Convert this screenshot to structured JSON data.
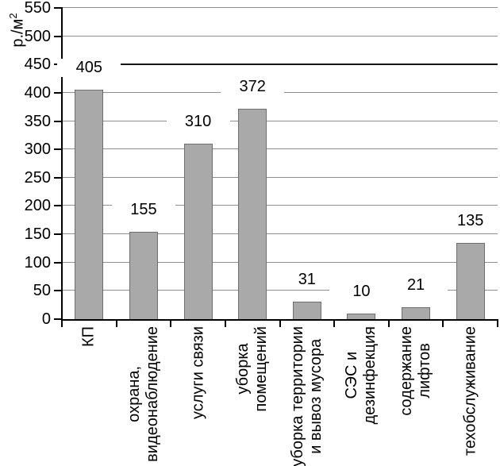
{
  "chart_data": {
    "type": "bar",
    "title": "",
    "ylabel": "р./м2",
    "ylabel_base": "р./м",
    "ylabel_sup": "2",
    "categories": [
      [
        "КП"
      ],
      [
        "охрана,",
        "видеонаблюдение"
      ],
      [
        "услуги связи"
      ],
      [
        "уборка",
        "помещений"
      ],
      [
        "уборка территории",
        "и вывоз мусора"
      ],
      [
        "СЭС и",
        "дезинфекция"
      ],
      [
        "содержание",
        "лифтов"
      ],
      [
        "техобслуживание"
      ]
    ],
    "values": [
      405,
      155,
      310,
      372,
      31,
      10,
      21,
      135
    ],
    "value_labels": [
      "405",
      "155",
      "310",
      "372",
      "31",
      "10",
      "21",
      "135"
    ],
    "ylim": [
      0,
      550
    ],
    "ytick_step": 50,
    "grid": true,
    "legend": false,
    "colors": {
      "bar_fill": "#a9a9a9",
      "bar_border": "#6e6e6e",
      "gridline": "#8f8f8f",
      "dark_gridline": "#151515",
      "axis": "#000000",
      "text": "#000000",
      "background": "#ffffff"
    },
    "dark_gridline_value": 450
  }
}
